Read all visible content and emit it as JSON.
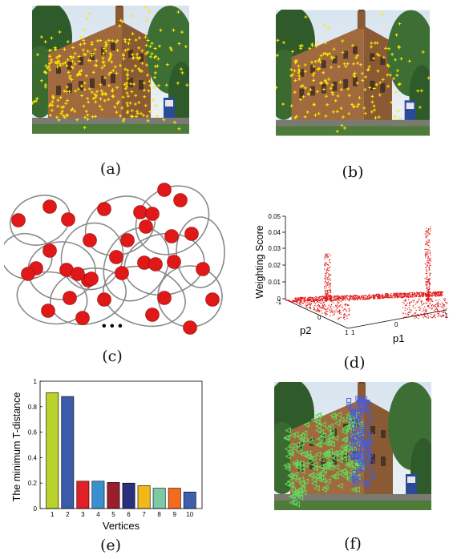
{
  "captions": {
    "a": "(a)",
    "b": "(b)",
    "c": "(c)",
    "d": "(d)",
    "e": "(e)",
    "f": "(f)"
  },
  "colors": {
    "marker_yellow": "#ffea00",
    "node_red": "#e01818",
    "tri_green": "#5ee05e",
    "sq_blue": "#4a5cd8"
  },
  "icons": {
    "photo_a": "building-photo",
    "photo_b": "building-photo",
    "photo_f": "building-photo"
  },
  "panel_c": {
    "ellipsis": "• • •"
  },
  "panel_d": {
    "ylabel": "Weighting Score",
    "z_ticks": [
      "0.05",
      "0.04",
      "0.03",
      "0.02",
      "0.01",
      "0"
    ],
    "p1_label": "p1",
    "p2_label": "p2",
    "p1_ticks": [
      "1",
      "0",
      "-1"
    ],
    "p2_ticks": [
      "-1",
      "0",
      "1"
    ]
  },
  "chart_data": {
    "type": "bar",
    "categories": [
      "1",
      "2",
      "3",
      "4",
      "5",
      "6",
      "7",
      "8",
      "9",
      "10"
    ],
    "values": [
      0.91,
      0.88,
      0.215,
      0.215,
      0.205,
      0.2,
      0.18,
      0.16,
      0.16,
      0.13
    ],
    "colors": [
      "#b9d22c",
      "#3a5ca8",
      "#e21e26",
      "#3b8fd0",
      "#9a1e2e",
      "#2a2f7e",
      "#f2b81b",
      "#7ccba5",
      "#f46b1f",
      "#3f5fae"
    ],
    "xlabel": "Vertices",
    "ylabel": "The minimum T-distance",
    "ylim": [
      0,
      1
    ],
    "yticks": [
      "0",
      "0.2",
      "0.4",
      "0.6",
      "0.8",
      "1"
    ],
    "grid": false
  }
}
